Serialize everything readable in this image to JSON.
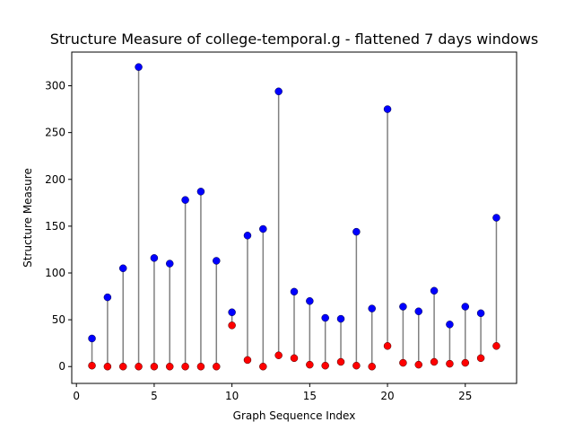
{
  "chart_data": {
    "type": "scatter",
    "title": "Structure Measure of college-temporal.g - flattened 7 days windows",
    "xlabel": "Graph Sequence Index",
    "ylabel": "Structure Measure",
    "xlim": [
      -0.3,
      28.3
    ],
    "ylim": [
      -18,
      336
    ],
    "xticks": [
      0,
      5,
      10,
      15,
      20,
      25
    ],
    "yticks": [
      0,
      50,
      100,
      150,
      200,
      250,
      300
    ],
    "grid": false,
    "x": [
      1,
      2,
      3,
      4,
      5,
      6,
      7,
      8,
      9,
      10,
      11,
      12,
      13,
      14,
      15,
      16,
      17,
      18,
      19,
      20,
      21,
      22,
      23,
      24,
      25,
      26,
      27
    ],
    "series": [
      {
        "values": [
          30,
          74,
          105,
          320,
          116,
          110,
          178,
          187,
          113,
          58,
          140,
          147,
          294,
          80,
          70,
          52,
          51,
          144,
          62,
          275,
          64,
          59,
          81,
          45,
          64,
          57,
          159
        ]
      },
      {
        "values": [
          1,
          0,
          0,
          0,
          0,
          0,
          0,
          0,
          0,
          44,
          7,
          0,
          12,
          9,
          2,
          1,
          5,
          1,
          0,
          22,
          4,
          2,
          5,
          3,
          4,
          9,
          22
        ]
      }
    ],
    "colors": {
      "top": "#0000ff",
      "bottom": "#ff0000",
      "stem": "#808080"
    }
  }
}
